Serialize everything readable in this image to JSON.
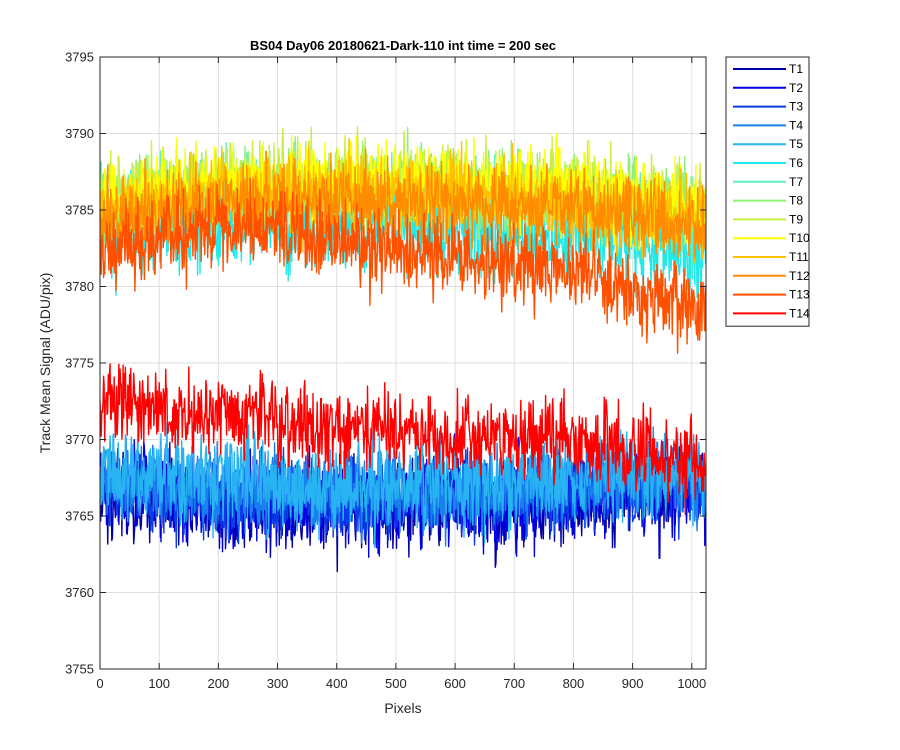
{
  "chart_data": {
    "type": "line",
    "title": "BS04 Day06 20180621-Dark-110 int time = 200 sec",
    "xlabel": "Pixels",
    "ylabel": "Track Mean Signal (ADU/pix)",
    "xlim": [
      0,
      1024
    ],
    "ylim": [
      3755,
      3795
    ],
    "x_ticks": [
      0,
      100,
      200,
      300,
      400,
      500,
      600,
      700,
      800,
      900,
      1000
    ],
    "y_ticks": [
      3755,
      3760,
      3765,
      3770,
      3775,
      3780,
      3785,
      3790,
      3795
    ],
    "grid": true,
    "legend_position": "outside-top-right",
    "x_samples": 1024,
    "series": [
      {
        "name": "T1",
        "color": "#0000a8",
        "mean_y_at_x": {
          "x": [
            0,
            200,
            400,
            600,
            800,
            1024
          ],
          "y": [
            3766.5,
            3765.8,
            3765.5,
            3765.8,
            3766.0,
            3766.5
          ]
        },
        "spread": 4.5
      },
      {
        "name": "T2",
        "color": "#0000e0",
        "mean_y_at_x": {
          "x": [
            0,
            200,
            400,
            600,
            800,
            1024
          ],
          "y": [
            3766.8,
            3766.0,
            3765.8,
            3766.0,
            3766.2,
            3766.8
          ]
        },
        "spread": 4.5
      },
      {
        "name": "T3",
        "color": "#0a3ce8",
        "mean_y_at_x": {
          "x": [
            0,
            200,
            400,
            600,
            800,
            1024
          ],
          "y": [
            3767.0,
            3766.3,
            3766.0,
            3766.3,
            3766.5,
            3767.0
          ]
        },
        "spread": 4.2
      },
      {
        "name": "T4",
        "color": "#1a80f0",
        "mean_y_at_x": {
          "x": [
            0,
            200,
            400,
            600,
            800,
            1024
          ],
          "y": [
            3767.5,
            3766.7,
            3766.5,
            3766.7,
            3767.0,
            3767.5
          ]
        },
        "spread": 4.2
      },
      {
        "name": "T5",
        "color": "#28b4f2",
        "mean_y_at_x": {
          "x": [
            0,
            200,
            400,
            600,
            800,
            1024
          ],
          "y": [
            3768.2,
            3767.5,
            3767.0,
            3767.2,
            3767.5,
            3768.0
          ]
        },
        "spread": 4.5
      },
      {
        "name": "T6",
        "color": "#22e8e8",
        "mean_y_at_x": {
          "x": [
            0,
            200,
            400,
            600,
            800,
            1024
          ],
          "y": [
            3783.5,
            3784.0,
            3784.0,
            3783.5,
            3783.0,
            3782.0
          ]
        },
        "spread": 4.5
      },
      {
        "name": "T7",
        "color": "#60f0c0",
        "mean_y_at_x": {
          "x": [
            0,
            200,
            400,
            600,
            800,
            1024
          ],
          "y": [
            3785.0,
            3786.0,
            3786.0,
            3786.0,
            3785.5,
            3784.5
          ]
        },
        "spread": 4.0
      },
      {
        "name": "T8",
        "color": "#90f078",
        "mean_y_at_x": {
          "x": [
            0,
            200,
            400,
            600,
            800,
            1024
          ],
          "y": [
            3785.5,
            3786.5,
            3786.5,
            3786.5,
            3786.0,
            3785.0
          ]
        },
        "spread": 4.0
      },
      {
        "name": "T9",
        "color": "#c8f040",
        "mean_y_at_x": {
          "x": [
            0,
            200,
            400,
            600,
            800,
            1024
          ],
          "y": [
            3786.0,
            3787.0,
            3787.0,
            3786.8,
            3786.5,
            3785.0
          ]
        },
        "spread": 4.0
      },
      {
        "name": "T10",
        "color": "#ffff00",
        "mean_y_at_x": {
          "x": [
            0,
            200,
            400,
            600,
            800,
            1024
          ],
          "y": [
            3785.5,
            3786.5,
            3787.0,
            3786.8,
            3786.5,
            3785.0
          ]
        },
        "spread": 4.0
      },
      {
        "name": "T11",
        "color": "#ffc000",
        "mean_y_at_x": {
          "x": [
            0,
            200,
            400,
            600,
            800,
            1024
          ],
          "y": [
            3785.0,
            3786.0,
            3786.0,
            3786.0,
            3785.5,
            3784.5
          ]
        },
        "spread": 4.0
      },
      {
        "name": "T12",
        "color": "#ff8c00",
        "mean_y_at_x": {
          "x": [
            0,
            200,
            400,
            600,
            800,
            1024
          ],
          "y": [
            3784.5,
            3785.5,
            3785.5,
            3785.5,
            3785.0,
            3784.0
          ]
        },
        "spread": 4.0
      },
      {
        "name": "T13",
        "color": "#ff5000",
        "mean_y_at_x": {
          "x": [
            0,
            200,
            400,
            600,
            800,
            1024
          ],
          "y": [
            3782.5,
            3784.0,
            3783.0,
            3782.0,
            3781.0,
            3778.5
          ]
        },
        "spread": 4.0
      },
      {
        "name": "T14",
        "color": "#ff0000",
        "mean_y_at_x": {
          "x": [
            0,
            200,
            400,
            600,
            800,
            1024
          ],
          "y": [
            3772.5,
            3771.5,
            3771.0,
            3770.0,
            3770.0,
            3768.5
          ]
        },
        "spread": 4.0
      }
    ]
  }
}
